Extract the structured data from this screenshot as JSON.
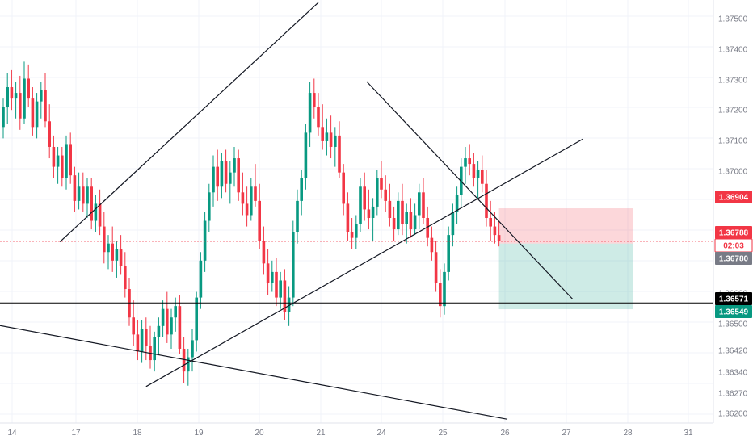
{
  "chart_data": {
    "type": "candlestick",
    "x_axis": {
      "tick_labels": [
        "14",
        "17",
        "18",
        "19",
        "20",
        "21",
        "24",
        "25",
        "26",
        "27",
        "28",
        "31"
      ]
    },
    "y_axis": {
      "range": [
        1.3616,
        1.3758
      ],
      "tick_labels": [
        "1.37500",
        "1.37400",
        "1.37300",
        "1.37200",
        "1.37100",
        "1.37000",
        "1.36600",
        "1.36500",
        "1.36420",
        "1.36340",
        "1.36270",
        "1.36200"
      ]
    },
    "price_tags": [
      {
        "label": "1.36904",
        "value": 1.36904,
        "kind": "stop-loss",
        "color": "#f23645"
      },
      {
        "label": "1.36788",
        "value": 1.36788,
        "kind": "current-price",
        "color": "#f23645"
      },
      {
        "label": "02:03",
        "kind": "countdown"
      },
      {
        "label": "1.36780",
        "value": 1.3678,
        "kind": "entry",
        "color": "#787b86"
      },
      {
        "label": "1.36571",
        "value": 1.36571,
        "kind": "horizontal-line",
        "color": "#000000"
      },
      {
        "label": "1.36549",
        "value": 1.36549,
        "kind": "take-profit",
        "color": "#089981"
      }
    ],
    "horizontal_lines": [
      {
        "value": 1.36571,
        "color": "#000000",
        "style": "solid"
      },
      {
        "value": 1.36788,
        "color": "#f23645",
        "style": "dotted"
      }
    ],
    "position_tool": {
      "type": "short",
      "entry": 1.3678,
      "stop": 1.36904,
      "target": 1.36549,
      "start_index": 118,
      "end_index": 150
    },
    "trend_lines": [
      {
        "from": [
          13.5,
          1.36786
        ],
        "to": [
          75,
          1.37628
        ]
      },
      {
        "from": [
          34,
          1.36277
        ],
        "to": [
          138,
          1.37148
        ]
      },
      {
        "from": [
          -2,
          1.36495
        ],
        "to": [
          120,
          1.36162
        ]
      },
      {
        "from": [
          86.5,
          1.3735
        ],
        "to": [
          135.5,
          1.36585
        ]
      }
    ],
    "candles": [
      [
        1.3719,
        1.3729,
        1.3715,
        1.3726
      ],
      [
        1.3726,
        1.3738,
        1.372,
        1.3733
      ],
      [
        1.3733,
        1.3739,
        1.3725,
        1.3729
      ],
      [
        1.3729,
        1.3735,
        1.3722,
        1.3731
      ],
      [
        1.3731,
        1.3737,
        1.3718,
        1.3722
      ],
      [
        1.3722,
        1.3742,
        1.372,
        1.3736
      ],
      [
        1.3736,
        1.3741,
        1.3726,
        1.3729
      ],
      [
        1.3729,
        1.3733,
        1.3716,
        1.3719
      ],
      [
        1.3719,
        1.3731,
        1.3715,
        1.3728
      ],
      [
        1.3728,
        1.3735,
        1.3722,
        1.3732
      ],
      [
        1.3732,
        1.3738,
        1.3719,
        1.3721
      ],
      [
        1.3721,
        1.3727,
        1.3708,
        1.3712
      ],
      [
        1.3712,
        1.3716,
        1.3701,
        1.3705
      ],
      [
        1.3705,
        1.3712,
        1.3699,
        1.3709
      ],
      [
        1.3709,
        1.3712,
        1.3698,
        1.3701
      ],
      [
        1.3701,
        1.3716,
        1.3697,
        1.3713
      ],
      [
        1.3713,
        1.3717,
        1.3699,
        1.3702
      ],
      [
        1.3702,
        1.3705,
        1.3689,
        1.3693
      ],
      [
        1.3693,
        1.3703,
        1.369,
        1.3698
      ],
      [
        1.3698,
        1.3703,
        1.3689,
        1.3692
      ],
      [
        1.3692,
        1.3701,
        1.3687,
        1.3698
      ],
      [
        1.3698,
        1.3701,
        1.3683,
        1.3686
      ],
      [
        1.3686,
        1.3695,
        1.3682,
        1.3692
      ],
      [
        1.3692,
        1.3697,
        1.3681,
        1.3684
      ],
      [
        1.3684,
        1.3689,
        1.3671,
        1.3675
      ],
      [
        1.3675,
        1.3681,
        1.3669,
        1.3678
      ],
      [
        1.3678,
        1.3684,
        1.3668,
        1.3672
      ],
      [
        1.3672,
        1.3679,
        1.3666,
        1.3676
      ],
      [
        1.3676,
        1.3681,
        1.3667,
        1.367
      ],
      [
        1.367,
        1.3675,
        1.3659,
        1.3662
      ],
      [
        1.3662,
        1.3666,
        1.3649,
        1.3652
      ],
      [
        1.3652,
        1.3658,
        1.3642,
        1.3646
      ],
      [
        1.3646,
        1.3651,
        1.3637,
        1.364
      ],
      [
        1.364,
        1.3651,
        1.3636,
        1.3648
      ],
      [
        1.3648,
        1.3652,
        1.3637,
        1.3642
      ],
      [
        1.3642,
        1.3649,
        1.3634,
        1.3637
      ],
      [
        1.3637,
        1.3647,
        1.3633,
        1.3645
      ],
      [
        1.3645,
        1.3652,
        1.3639,
        1.3649
      ],
      [
        1.3649,
        1.3658,
        1.3645,
        1.3655
      ],
      [
        1.3655,
        1.3661,
        1.3643,
        1.3646
      ],
      [
        1.3646,
        1.3655,
        1.3641,
        1.3652
      ],
      [
        1.3652,
        1.3659,
        1.3647,
        1.3656
      ],
      [
        1.3656,
        1.366,
        1.3639,
        1.3641
      ],
      [
        1.3641,
        1.3645,
        1.3629,
        1.3633
      ],
      [
        1.3633,
        1.3641,
        1.3628,
        1.3638
      ],
      [
        1.3638,
        1.3648,
        1.3633,
        1.3644
      ],
      [
        1.3644,
        1.3661,
        1.364,
        1.3659
      ],
      [
        1.3659,
        1.3675,
        1.3655,
        1.3672
      ],
      [
        1.3672,
        1.3689,
        1.3668,
        1.3686
      ],
      [
        1.3686,
        1.3699,
        1.3682,
        1.3696
      ],
      [
        1.3696,
        1.3709,
        1.3691,
        1.3705
      ],
      [
        1.3705,
        1.3711,
        1.3693,
        1.3698
      ],
      [
        1.3698,
        1.371,
        1.3694,
        1.3707
      ],
      [
        1.3707,
        1.3711,
        1.3696,
        1.3699
      ],
      [
        1.3699,
        1.3707,
        1.3692,
        1.3703
      ],
      [
        1.3703,
        1.3712,
        1.3698,
        1.3708
      ],
      [
        1.3708,
        1.3711,
        1.3693,
        1.3696
      ],
      [
        1.3696,
        1.3703,
        1.3688,
        1.3692
      ],
      [
        1.3692,
        1.3698,
        1.3684,
        1.3688
      ],
      [
        1.3688,
        1.3701,
        1.3686,
        1.3698
      ],
      [
        1.3698,
        1.3706,
        1.3691,
        1.3693
      ],
      [
        1.3693,
        1.3699,
        1.3676,
        1.3679
      ],
      [
        1.3679,
        1.3684,
        1.3667,
        1.3671
      ],
      [
        1.3671,
        1.3676,
        1.366,
        1.3664
      ],
      [
        1.3664,
        1.3672,
        1.3661,
        1.3668
      ],
      [
        1.3668,
        1.3673,
        1.3656,
        1.3659
      ],
      [
        1.3659,
        1.3668,
        1.3655,
        1.3665
      ],
      [
        1.3665,
        1.3669,
        1.3651,
        1.3654
      ],
      [
        1.3654,
        1.3663,
        1.3649,
        1.3659
      ],
      [
        1.3659,
        1.3686,
        1.3656,
        1.3682
      ],
      [
        1.3682,
        1.3697,
        1.3678,
        1.3693
      ],
      [
        1.3693,
        1.3704,
        1.3688,
        1.3701
      ],
      [
        1.3701,
        1.372,
        1.3697,
        1.3717
      ],
      [
        1.3717,
        1.3735,
        1.3712,
        1.3731
      ],
      [
        1.3731,
        1.3736,
        1.3722,
        1.3726
      ],
      [
        1.3726,
        1.3731,
        1.3716,
        1.3719
      ],
      [
        1.3719,
        1.3727,
        1.3711,
        1.3714
      ],
      [
        1.3714,
        1.3722,
        1.3709,
        1.3717
      ],
      [
        1.3717,
        1.3723,
        1.3708,
        1.3712
      ],
      [
        1.3712,
        1.3719,
        1.3705,
        1.3716
      ],
      [
        1.3716,
        1.3721,
        1.3701,
        1.3703
      ],
      [
        1.3703,
        1.3706,
        1.3688,
        1.3692
      ],
      [
        1.3692,
        1.3696,
        1.3679,
        1.3682
      ],
      [
        1.3682,
        1.3687,
        1.3676,
        1.368
      ],
      [
        1.368,
        1.3688,
        1.3676,
        1.3685
      ],
      [
        1.3685,
        1.3701,
        1.3682,
        1.3698
      ],
      [
        1.3698,
        1.3703,
        1.3686,
        1.369
      ],
      [
        1.369,
        1.3697,
        1.3683,
        1.3687
      ],
      [
        1.3687,
        1.3694,
        1.3679,
        1.3691
      ],
      [
        1.3691,
        1.3704,
        1.3688,
        1.3701
      ],
      [
        1.3701,
        1.3707,
        1.3694,
        1.3697
      ],
      [
        1.3697,
        1.3702,
        1.3689,
        1.3693
      ],
      [
        1.3693,
        1.3699,
        1.3684,
        1.3687
      ],
      [
        1.3687,
        1.3691,
        1.3679,
        1.3683
      ],
      [
        1.3683,
        1.3696,
        1.3681,
        1.3693
      ],
      [
        1.3693,
        1.3699,
        1.3681,
        1.3685
      ],
      [
        1.3685,
        1.3692,
        1.3678,
        1.3689
      ],
      [
        1.3689,
        1.3694,
        1.368,
        1.3683
      ],
      [
        1.3683,
        1.3692,
        1.3681,
        1.3688
      ],
      [
        1.3688,
        1.3699,
        1.3683,
        1.3696
      ],
      [
        1.3696,
        1.3701,
        1.3685,
        1.3687
      ],
      [
        1.3687,
        1.3691,
        1.3677,
        1.368
      ],
      [
        1.368,
        1.3684,
        1.3672,
        1.3675
      ],
      [
        1.3675,
        1.3679,
        1.3661,
        1.3664
      ],
      [
        1.3664,
        1.3669,
        1.3652,
        1.3656
      ],
      [
        1.3656,
        1.3671,
        1.3653,
        1.3668
      ],
      [
        1.3668,
        1.3684,
        1.3665,
        1.3681
      ],
      [
        1.3681,
        1.3692,
        1.3677,
        1.3689
      ],
      [
        1.3689,
        1.3698,
        1.3685,
        1.3695
      ],
      [
        1.3695,
        1.3708,
        1.3691,
        1.3705
      ],
      [
        1.3705,
        1.3712,
        1.3699,
        1.3708
      ],
      [
        1.3708,
        1.3713,
        1.3702,
        1.3706
      ],
      [
        1.3706,
        1.371,
        1.3698,
        1.3701
      ],
      [
        1.3701,
        1.3707,
        1.3694,
        1.3704
      ],
      [
        1.3704,
        1.3709,
        1.3696,
        1.3699
      ],
      [
        1.3699,
        1.3704,
        1.3684,
        1.3687
      ],
      [
        1.3687,
        1.3693,
        1.3679,
        1.3684
      ],
      [
        1.3684,
        1.3689,
        1.3678,
        1.3681
      ],
      [
        1.3681,
        1.3686,
        1.3677,
        1.3679
      ]
    ]
  }
}
